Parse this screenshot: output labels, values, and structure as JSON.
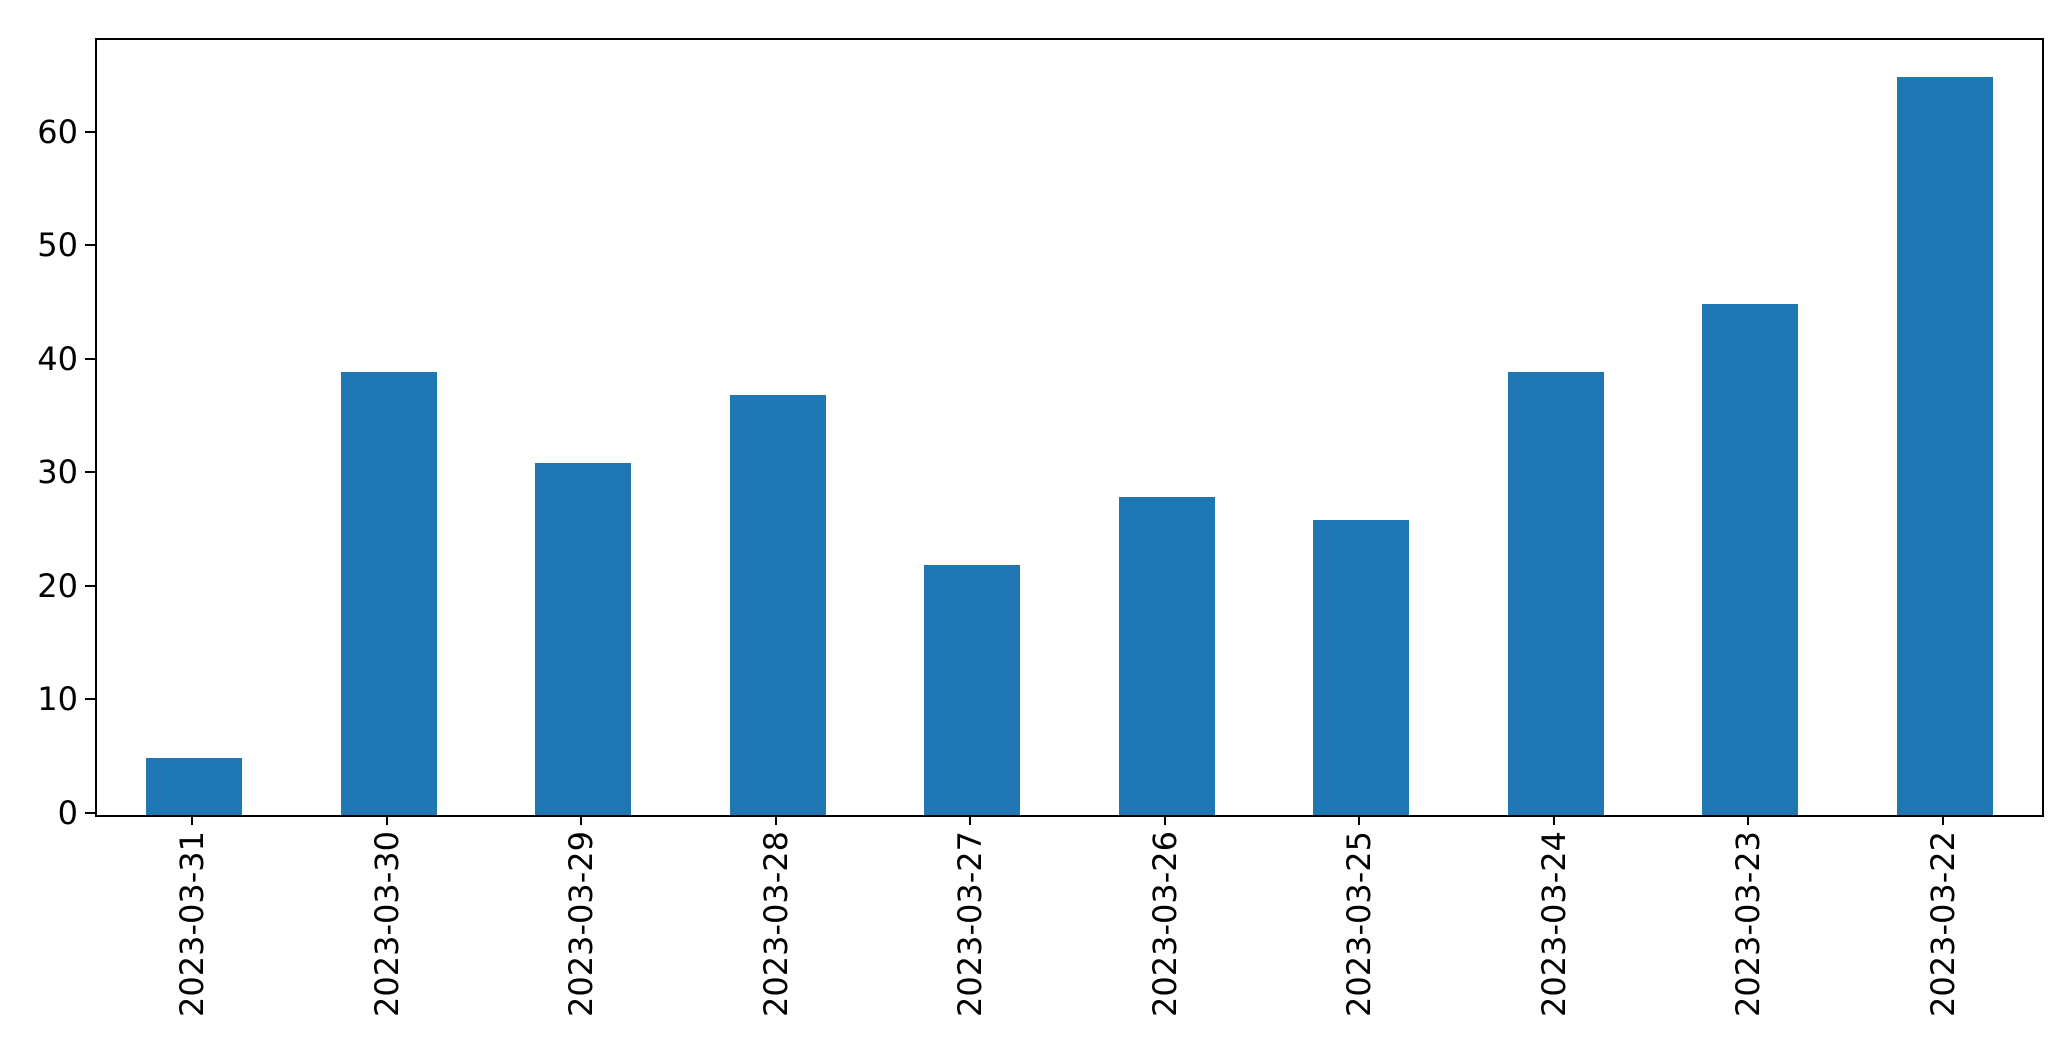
{
  "chart_data": {
    "type": "bar",
    "categories": [
      "2023-03-31",
      "2023-03-30",
      "2023-03-29",
      "2023-03-28",
      "2023-03-27",
      "2023-03-26",
      "2023-03-25",
      "2023-03-24",
      "2023-03-23",
      "2023-03-22"
    ],
    "values": [
      5,
      39,
      31,
      37,
      22,
      28,
      26,
      39,
      45,
      65
    ],
    "title": "",
    "xlabel": "",
    "ylabel": "",
    "ylim": [
      0,
      68.25
    ],
    "yticks": [
      0,
      10,
      20,
      30,
      40,
      50,
      60
    ],
    "x_tick_rotation_deg": 90,
    "grid": false,
    "legend_position": "none",
    "bar_color": "#1f77b4",
    "axis_color": "#000000",
    "background_color": "#ffffff"
  }
}
